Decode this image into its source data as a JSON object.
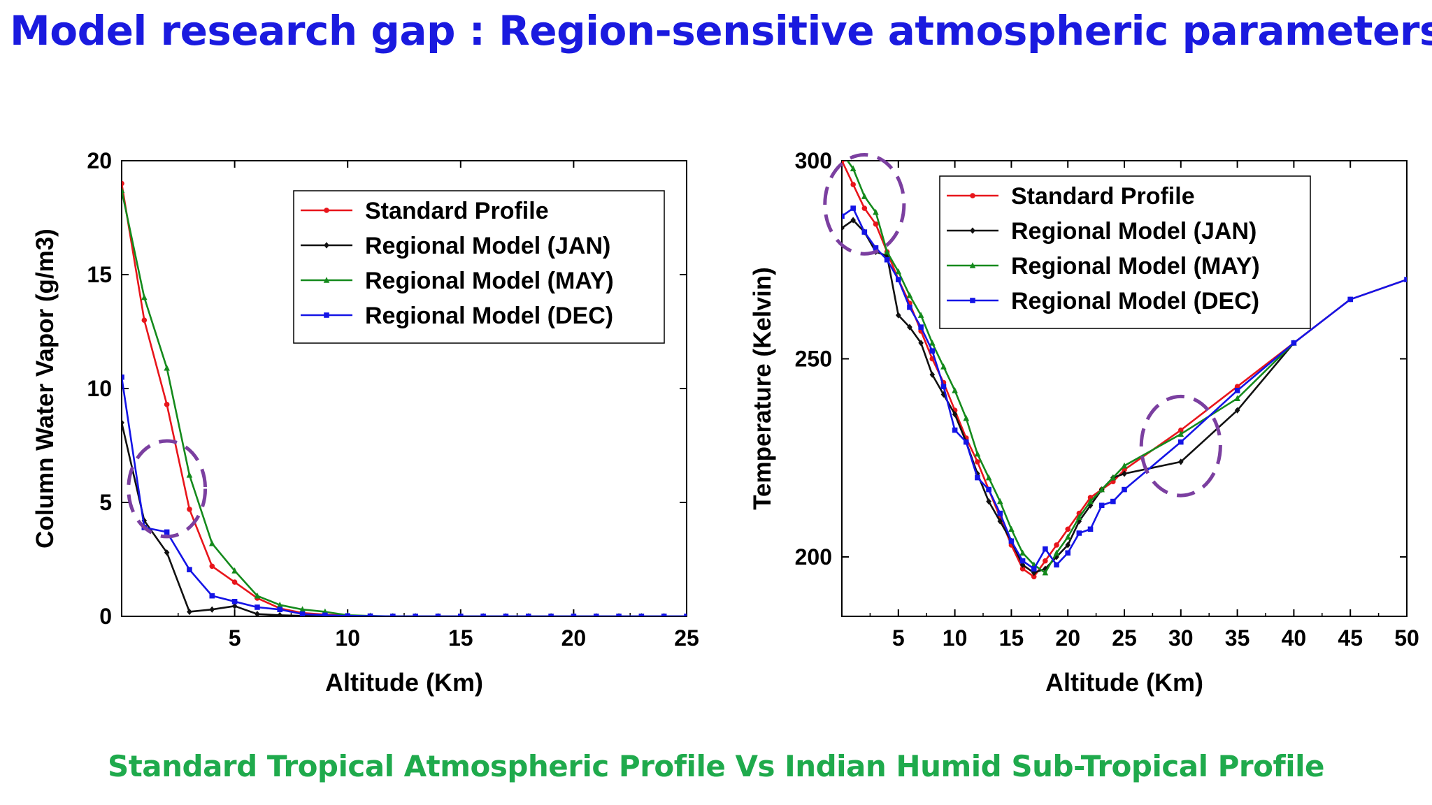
{
  "title": "Model research gap : Region-sensitive atmospheric parameters",
  "footer": "Standard Tropical Atmospheric Profile Vs Indian Humid Sub-Tropical Profile",
  "colors": {
    "title": "#1a1adf",
    "footer": "#1faa4c",
    "highlight": "#7b3fa0"
  },
  "chart_data": [
    {
      "type": "line",
      "xlabel": "Altitude (Km)",
      "ylabel": "Column Water Vapor (g/m3)",
      "xlim": [
        0,
        25
      ],
      "ylim": [
        0,
        20
      ],
      "xticks": [
        5,
        10,
        15,
        20,
        25
      ],
      "yticks": [
        0,
        5,
        10,
        15,
        20
      ],
      "grid": false,
      "legend_position": "top-right",
      "series": [
        {
          "name": "Standard Profile",
          "color": "#e8151b",
          "marker": "circle",
          "x": [
            0,
            1,
            2,
            3,
            4,
            5,
            6,
            7,
            8,
            9,
            10,
            11,
            12,
            13,
            14,
            15,
            16,
            17,
            18,
            19,
            20,
            21,
            22,
            23,
            24,
            25
          ],
          "y": [
            19,
            13,
            9.3,
            4.7,
            2.2,
            1.5,
            0.8,
            0.35,
            0.15,
            0.08,
            0.03,
            0.01,
            0,
            0,
            0,
            0,
            0,
            0,
            0,
            0,
            0,
            0,
            0,
            0,
            0,
            0
          ]
        },
        {
          "name": "Regional Model (JAN)",
          "color": "#111111",
          "marker": "diamond",
          "x": [
            0,
            1,
            2,
            3,
            4,
            5,
            6,
            7,
            8,
            9,
            10,
            11,
            12,
            13,
            14,
            15,
            16,
            17,
            18,
            19,
            20,
            21,
            22,
            23,
            24,
            25
          ],
          "y": [
            8.5,
            4.2,
            2.8,
            0.2,
            0.3,
            0.45,
            0.1,
            0.05,
            0.02,
            0.01,
            0,
            0,
            0,
            0,
            0,
            0,
            0,
            0,
            0,
            0,
            0,
            0,
            0,
            0,
            0,
            0
          ]
        },
        {
          "name": "Regional Model (MAY)",
          "color": "#148a1c",
          "marker": "triangle",
          "x": [
            0,
            1,
            2,
            3,
            4,
            5,
            6,
            7,
            8,
            9,
            10,
            11,
            12,
            13,
            14,
            15,
            16,
            17,
            18,
            19,
            20,
            21,
            22,
            23,
            24,
            25
          ],
          "y": [
            18.7,
            14,
            10.9,
            6.2,
            3.2,
            2.0,
            0.9,
            0.5,
            0.3,
            0.2,
            0.05,
            0.02,
            0,
            0,
            0,
            0,
            0,
            0,
            0,
            0,
            0,
            0,
            0,
            0,
            0,
            0
          ]
        },
        {
          "name": "Regional Model (DEC)",
          "color": "#1414e6",
          "marker": "square",
          "x": [
            0,
            1,
            2,
            3,
            4,
            5,
            6,
            7,
            8,
            9,
            10,
            11,
            12,
            13,
            14,
            15,
            16,
            17,
            18,
            19,
            20,
            21,
            22,
            23,
            24,
            25
          ],
          "y": [
            10.5,
            3.9,
            3.7,
            2.05,
            0.9,
            0.65,
            0.4,
            0.3,
            0.1,
            0.05,
            0.02,
            0.01,
            0,
            0,
            0,
            0,
            0,
            0,
            0,
            0,
            0,
            0,
            0,
            0,
            0,
            0
          ]
        }
      ],
      "highlights": [
        {
          "cx": 2,
          "cy": 5.6,
          "rx": 1.7,
          "ry": 2.1
        }
      ]
    },
    {
      "type": "line",
      "xlabel": "Altitude (Km)",
      "ylabel": "Temperature (Kelvin)",
      "xlim": [
        0,
        50
      ],
      "ylim": [
        185,
        300
      ],
      "xticks": [
        5,
        10,
        15,
        20,
        25,
        30,
        35,
        40,
        45,
        50
      ],
      "yticks": [
        200,
        250,
        300
      ],
      "grid": false,
      "legend_position": "top-right",
      "series": [
        {
          "name": "Standard Profile",
          "color": "#e8151b",
          "marker": "circle",
          "x": [
            0,
            1,
            2,
            3,
            4,
            5,
            6,
            7,
            8,
            9,
            10,
            11,
            12,
            13,
            14,
            15,
            16,
            17,
            18,
            19,
            20,
            21,
            22,
            23,
            24,
            25,
            30,
            35,
            40,
            45,
            50
          ],
          "y": [
            300,
            294,
            288,
            284,
            277,
            270,
            264,
            257,
            250,
            244,
            237,
            230,
            224,
            217,
            210,
            203,
            197,
            195,
            199,
            203,
            207,
            211,
            215,
            217,
            219,
            222,
            232,
            243,
            254,
            265,
            270
          ]
        },
        {
          "name": "Regional Model (JAN)",
          "color": "#111111",
          "marker": "diamond",
          "x": [
            0,
            1,
            2,
            3,
            4,
            5,
            6,
            7,
            8,
            9,
            10,
            11,
            12,
            13,
            14,
            15,
            16,
            17,
            18,
            19,
            20,
            21,
            22,
            23,
            24,
            25,
            30,
            35,
            40
          ],
          "y": [
            283,
            285,
            282,
            277,
            276,
            261,
            258,
            254,
            246,
            241,
            236,
            229,
            221,
            214,
            209,
            204,
            198,
            196,
            197,
            200,
            203,
            209,
            213,
            217,
            220,
            221,
            224,
            237,
            254
          ]
        },
        {
          "name": "Regional Model (MAY)",
          "color": "#148a1c",
          "marker": "triangle",
          "x": [
            0,
            1,
            2,
            3,
            4,
            5,
            6,
            7,
            8,
            9,
            10,
            11,
            12,
            13,
            14,
            15,
            16,
            17,
            18,
            19,
            20,
            21,
            22,
            23,
            24,
            25,
            30,
            35,
            40
          ],
          "y": [
            302,
            298,
            291,
            287,
            277,
            272,
            266,
            261,
            254,
            248,
            242,
            235,
            226,
            220,
            214,
            207,
            201,
            198,
            196,
            201,
            205,
            210,
            214,
            217,
            220,
            223,
            231,
            240,
            254
          ]
        },
        {
          "name": "Regional Model (DEC)",
          "color": "#1414e6",
          "marker": "square",
          "x": [
            0,
            1,
            2,
            3,
            4,
            5,
            6,
            7,
            8,
            9,
            10,
            11,
            12,
            13,
            14,
            15,
            16,
            17,
            18,
            19,
            20,
            21,
            22,
            23,
            24,
            25,
            30,
            35,
            40,
            45,
            50
          ],
          "y": [
            286,
            288,
            282,
            278,
            275,
            270,
            263,
            258,
            252,
            243,
            232,
            229,
            220,
            217,
            211,
            204,
            199,
            197,
            202,
            198,
            201,
            206,
            207,
            213,
            214,
            217,
            229,
            242,
            254,
            265,
            270
          ]
        }
      ],
      "highlights": [
        {
          "cx": 2,
          "cy": 289,
          "rx": 3.5,
          "ry": 12.5
        },
        {
          "cx": 30,
          "cy": 228,
          "rx": 3.5,
          "ry": 12.5
        }
      ]
    }
  ]
}
